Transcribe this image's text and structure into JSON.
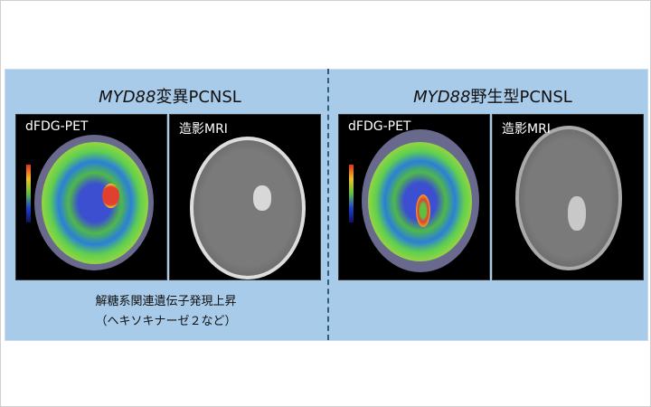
{
  "left": {
    "title_gene": "MYD88",
    "title_rest": "変異PCNSL",
    "pet_label": "dFDG-PET",
    "mri_label": "造影MRI",
    "caption_line1": "解糖系関連遺伝子発現上昇",
    "caption_line2": "（ヘキソキナーゼ２など）"
  },
  "right": {
    "title_gene": "MYD88",
    "title_rest": "野生型PCNSL",
    "pet_label": "dFDG-PET",
    "mri_label": "造影MRI"
  },
  "colors": {
    "panel": "#a8cbea",
    "divider": "#2e5f7a"
  }
}
